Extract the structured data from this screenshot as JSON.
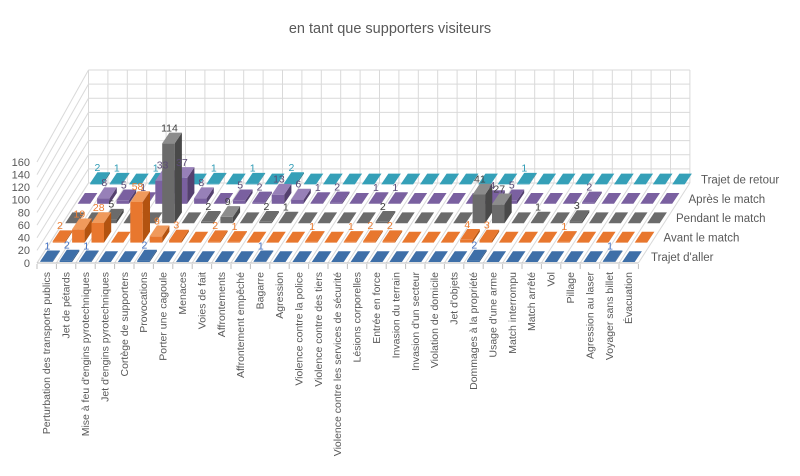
{
  "chart_data": {
    "type": "bar",
    "variant": "3d-column",
    "title": "en tant que supporters visiteurs",
    "title_color": "#595959",
    "grid_color": "#D9D9D9",
    "edge_color": "#BFBFBF",
    "category_text_color": "#595959",
    "legend_text_color": "#595959",
    "value_axis": {
      "min": 0,
      "max": 160,
      "step": 20,
      "tick_labels": [
        "0",
        "20",
        "40",
        "60",
        "80",
        "100",
        "120",
        "140",
        "160"
      ],
      "text_color": "#595959"
    },
    "categories": [
      "Perturbation des transports publics",
      "Jet de pétards",
      "Mise à feu d'engins pyrotechniques",
      "Jet d'engins pyrotechniques",
      "Cortège de supporters",
      "Provocations",
      "Porter une cagoule",
      "Menaces",
      "Voies de fait",
      "Affrontements",
      "Affrontement empêché",
      "Bagarre",
      "Agression",
      "Violence contre la police",
      "Violence contre des tiers",
      "Violence contre les services de sécurité",
      "Lésions corporelles",
      "Entrée en force",
      "Invasion du terrain",
      "Invasion d'un secteur",
      "Violation de domicile",
      "Jet d'objets",
      "Dommages à la propriété",
      "Usage d'une arme",
      "Match interrompu",
      "Match arrêté",
      "Vol",
      "Pillage",
      "Agression au laser",
      "Voyager sans billet",
      "Évacuation"
    ],
    "series": [
      {
        "name": "Trajet d'aller",
        "face": "#3E6FA8",
        "top": "#6291C4",
        "side": "#2B4E77",
        "label_color": "#4472C4",
        "values": [
          1,
          2,
          1,
          0,
          0,
          2,
          0,
          0,
          0,
          0,
          0,
          1,
          0,
          0,
          0,
          0,
          0,
          0,
          0,
          0,
          0,
          0,
          2,
          0,
          0,
          0,
          0,
          0,
          0,
          1,
          0
        ]
      },
      {
        "name": "Avant le match",
        "face": "#E8772E",
        "top": "#F09A5C",
        "side": "#B35310",
        "label_color": "#ED7D31",
        "values": [
          2,
          19,
          28,
          0,
          58,
          9,
          3,
          0,
          2,
          1,
          0,
          0,
          0,
          1,
          0,
          1,
          2,
          2,
          0,
          0,
          0,
          4,
          3,
          0,
          0,
          0,
          1,
          0,
          0,
          0,
          0
        ]
      },
      {
        "name": "Pendant le match",
        "face": "#6B6B6B",
        "top": "#8C8C8C",
        "side": "#494949",
        "label_color": "#404040",
        "values": [
          0,
          0,
          5,
          0,
          0,
          114,
          0,
          2,
          9,
          0,
          2,
          1,
          0,
          0,
          0,
          0,
          2,
          0,
          0,
          0,
          0,
          41,
          27,
          0,
          1,
          0,
          3,
          0,
          0,
          0,
          0
        ]
      },
      {
        "name": "Après le match",
        "face": "#7A60A0",
        "top": "#9780B8",
        "side": "#54406F",
        "label_color": "#5B4B77",
        "values": [
          0,
          8,
          5,
          1,
          33,
          37,
          8,
          0,
          5,
          2,
          13,
          6,
          1,
          2,
          0,
          1,
          1,
          0,
          0,
          0,
          0,
          4,
          5,
          0,
          0,
          0,
          2,
          0,
          0,
          0,
          0
        ]
      },
      {
        "name": "Trajet de retour",
        "face": "#35A0B8",
        "top": "#5FBBCE",
        "side": "#1F7285",
        "label_color": "#2E9BB5",
        "values": [
          2,
          1,
          0,
          1,
          0,
          0,
          1,
          0,
          1,
          0,
          2,
          0,
          0,
          0,
          0,
          0,
          0,
          0,
          0,
          0,
          0,
          0,
          1,
          0,
          0,
          0,
          0,
          0,
          0,
          0,
          0
        ]
      }
    ]
  }
}
